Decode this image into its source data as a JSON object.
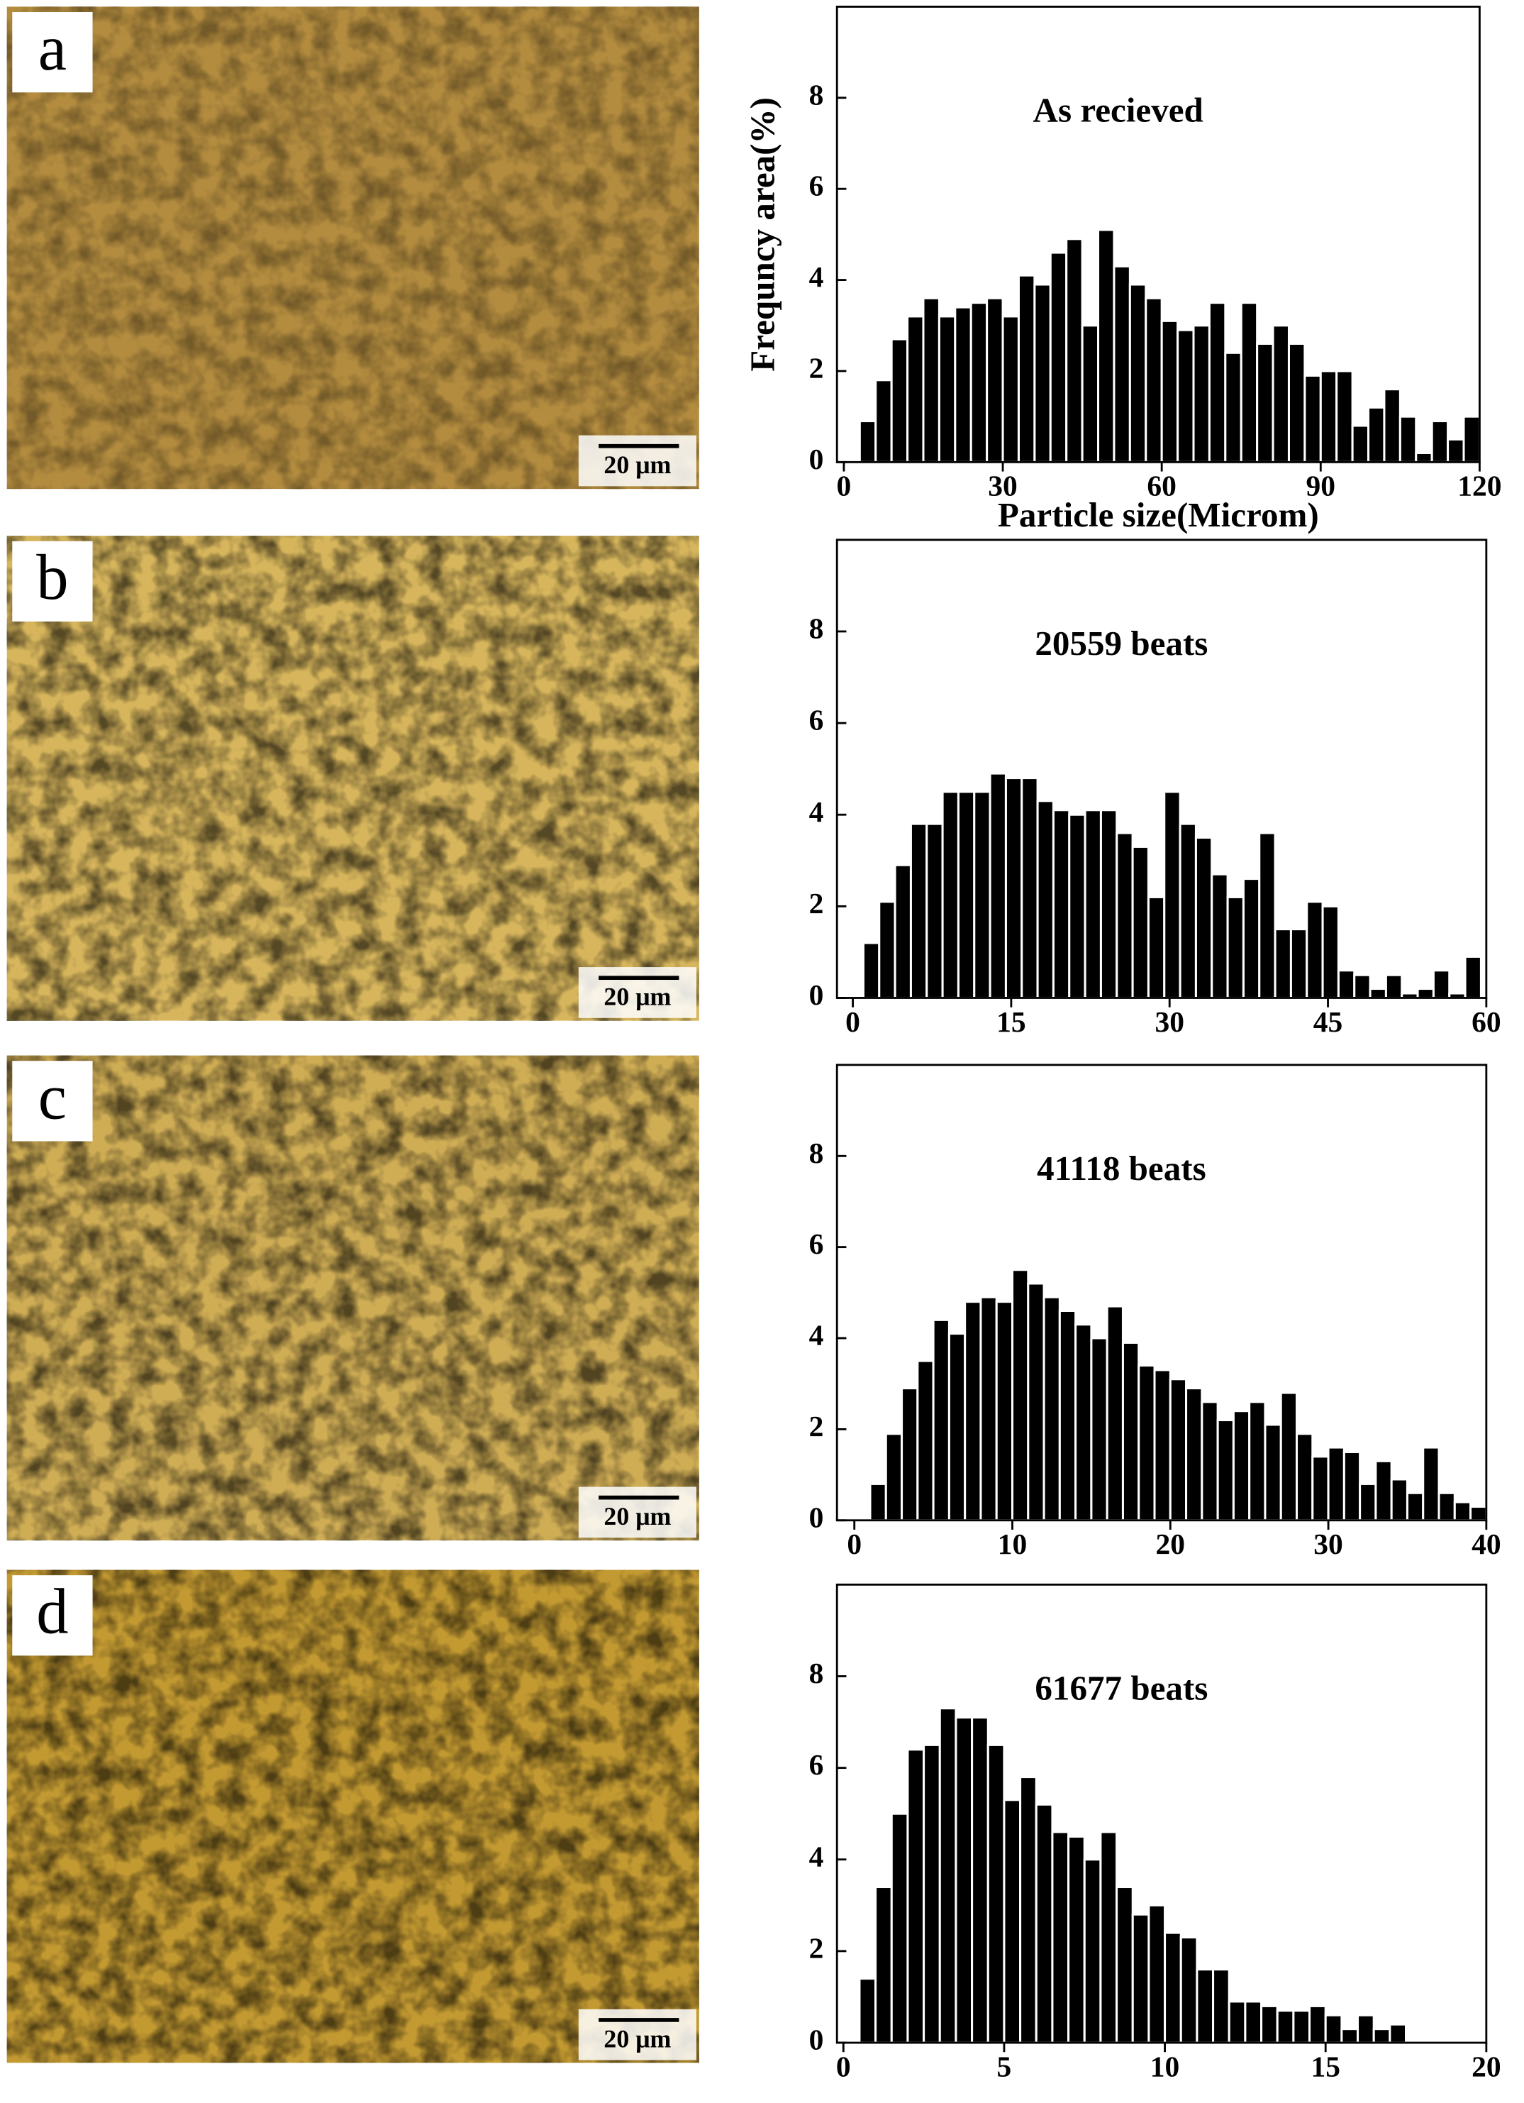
{
  "micrographs": [
    {
      "label": "a",
      "scale_bar": "20 μm"
    },
    {
      "label": "b",
      "scale_bar": "20 μm"
    },
    {
      "label": "c",
      "scale_bar": "20 μm"
    },
    {
      "label": "d",
      "scale_bar": "20 μm"
    }
  ],
  "chart_data": [
    {
      "type": "histogram",
      "title": "As recieved",
      "x_label": "Particle size(Microm)",
      "y_label": "Frequncy area(%)",
      "color": "#000000",
      "bins": [
        3,
        6,
        9,
        12,
        15,
        18,
        21,
        24,
        27,
        30,
        33,
        36,
        39,
        42,
        45,
        48,
        51,
        54,
        57,
        60,
        63,
        66,
        69,
        72,
        75,
        78,
        81,
        84,
        87,
        90,
        93,
        96,
        99,
        102,
        105,
        108,
        111,
        114,
        117,
        120
      ],
      "values": [
        0.9,
        1.8,
        2.7,
        3.2,
        3.6,
        3.2,
        3.4,
        3.5,
        3.6,
        3.2,
        4.1,
        3.9,
        4.6,
        4.9,
        3.0,
        5.1,
        4.3,
        3.9,
        3.6,
        3.1,
        2.9,
        3.0,
        3.5,
        2.4,
        3.5,
        2.6,
        3.0,
        2.6,
        1.9,
        2.0,
        2.0,
        0.8,
        1.2,
        1.6,
        1.0,
        0.2,
        0.9,
        0.5,
        1.0
      ],
      "xlim": [
        -1.3,
        120
      ],
      "xticks": [
        0,
        30,
        60,
        90,
        120
      ],
      "ylim": [
        0,
        10
      ],
      "yticks": [
        0,
        2,
        4,
        6,
        8
      ]
    },
    {
      "type": "histogram",
      "title": "20559 beats",
      "color": "#000000",
      "bins": [
        1,
        2.5,
        4,
        5.5,
        7,
        8.5,
        10,
        11.5,
        13,
        14.5,
        16,
        17.5,
        19,
        20.5,
        22,
        23.5,
        25,
        26.5,
        28,
        29.5,
        31,
        32.5,
        34,
        35.5,
        37,
        38.5,
        40,
        41.5,
        43,
        44.5,
        46,
        47.5,
        49,
        50.5,
        52,
        53.5,
        55,
        56.5,
        58,
        59.5
      ],
      "values": [
        1.2,
        2.1,
        2.9,
        3.8,
        3.8,
        4.5,
        4.5,
        4.5,
        4.9,
        4.8,
        4.8,
        4.3,
        4.1,
        4.0,
        4.1,
        4.1,
        3.6,
        3.3,
        2.2,
        4.5,
        3.8,
        3.5,
        2.7,
        2.2,
        2.6,
        3.6,
        1.5,
        1.5,
        2.1,
        2.0,
        0.6,
        0.5,
        0.2,
        0.5,
        0.1,
        0.2,
        0.6,
        0.1,
        0.9
      ],
      "xlim": [
        -1.5,
        60
      ],
      "xticks": [
        0,
        15,
        30,
        45,
        60
      ],
      "ylim": [
        0,
        10
      ],
      "yticks": [
        0,
        2,
        4,
        6,
        8
      ]
    },
    {
      "type": "histogram",
      "title": "41118 beats",
      "color": "#000000",
      "bins": [
        1,
        2,
        3,
        4,
        5,
        6,
        7,
        8,
        9,
        10,
        11,
        12,
        13,
        14,
        15,
        16,
        17,
        18,
        19,
        20,
        21,
        22,
        23,
        24,
        25,
        26,
        27,
        28,
        29,
        30,
        31,
        32,
        33,
        34,
        35,
        36,
        37,
        38,
        39,
        40
      ],
      "values": [
        0.8,
        1.9,
        2.9,
        3.5,
        4.4,
        4.1,
        4.8,
        4.9,
        4.8,
        5.5,
        5.2,
        4.9,
        4.6,
        4.3,
        4.0,
        4.7,
        3.9,
        3.4,
        3.3,
        3.1,
        2.9,
        2.6,
        2.2,
        2.4,
        2.6,
        2.1,
        2.8,
        1.9,
        1.4,
        1.6,
        1.5,
        0.8,
        1.3,
        0.9,
        0.6,
        1.6,
        0.6,
        0.4,
        0.3
      ],
      "xlim": [
        -1.1,
        40
      ],
      "xticks": [
        0,
        10,
        20,
        30,
        40
      ],
      "ylim": [
        0,
        10
      ],
      "yticks": [
        0,
        2,
        4,
        6,
        8
      ]
    },
    {
      "type": "histogram",
      "title": "61677 beats",
      "color": "#000000",
      "bins": [
        0.5,
        1,
        1.5,
        2,
        2.5,
        3,
        3.5,
        4,
        4.5,
        5,
        5.5,
        6,
        6.5,
        7,
        7.5,
        8,
        8.5,
        9,
        9.5,
        10,
        10.5,
        11,
        11.5,
        12,
        12.5,
        13,
        13.5,
        14,
        14.5,
        15,
        15.5,
        16,
        16.5,
        17,
        17.5
      ],
      "values": [
        1.4,
        3.4,
        5.0,
        6.4,
        6.5,
        7.3,
        7.1,
        7.1,
        6.5,
        5.3,
        5.8,
        5.2,
        4.6,
        4.5,
        4.0,
        4.6,
        3.4,
        2.8,
        3.0,
        2.4,
        2.3,
        1.6,
        1.6,
        0.9,
        0.9,
        0.8,
        0.7,
        0.7,
        0.8,
        0.6,
        0.3,
        0.6,
        0.3,
        0.4
      ],
      "xlim": [
        -0.2,
        20
      ],
      "xticks": [
        0,
        5,
        10,
        15,
        20
      ],
      "ylim": [
        0,
        10
      ],
      "yticks": [
        0,
        2,
        4,
        6,
        8
      ]
    }
  ]
}
